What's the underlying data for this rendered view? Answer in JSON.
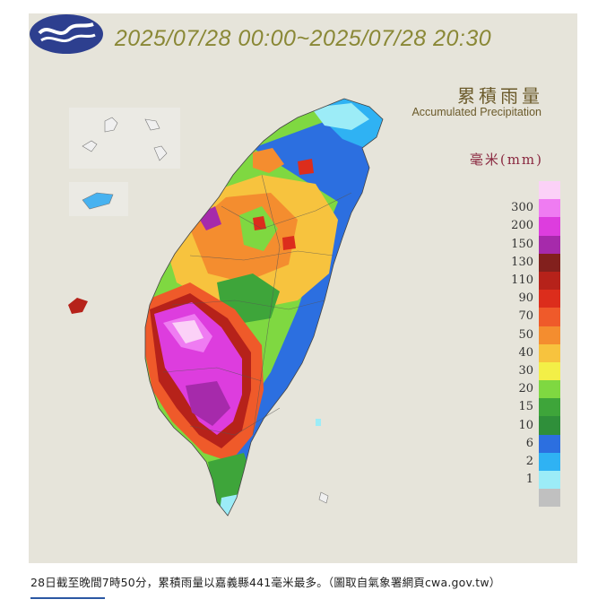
{
  "map": {
    "title": "2025/07/28 00:00~2025/07/28 20:30",
    "legend": {
      "title_zh": "累積雨量",
      "title_en": "Accumulated Precipitation",
      "unit": "毫米(mm)",
      "levels": [
        {
          "label": "",
          "color": "#fbd1f7"
        },
        {
          "label": "300",
          "color": "#ef7cf2"
        },
        {
          "label": "200",
          "color": "#dd3dde"
        },
        {
          "label": "150",
          "color": "#a62aab"
        },
        {
          "label": "130",
          "color": "#82201d"
        },
        {
          "label": "110",
          "color": "#b6221a"
        },
        {
          "label": "90",
          "color": "#dc2d1c"
        },
        {
          "label": "70",
          "color": "#ef5a2a"
        },
        {
          "label": "50",
          "color": "#f48d2f"
        },
        {
          "label": "40",
          "color": "#f7c33e"
        },
        {
          "label": "30",
          "color": "#f3ef47"
        },
        {
          "label": "20",
          "color": "#7fd841"
        },
        {
          "label": "15",
          "color": "#3ea53a"
        },
        {
          "label": "10",
          "color": "#2f8f3a"
        },
        {
          "label": "6",
          "color": "#2c6fe0"
        },
        {
          "label": "2",
          "color": "#2fb2f3"
        },
        {
          "label": "1",
          "color": "#9cecf7"
        },
        {
          "label": "",
          "color": "#c0c0c0"
        }
      ]
    },
    "logo_icon": "cwa-logo-icon"
  },
  "caption": {
    "text": "28日截至晚間7時50分，累積雨量以嘉義縣441毫米最多。（圖取自氣象署網頁cwa.gov.tw）",
    "accent_color": "#2b58a3"
  }
}
